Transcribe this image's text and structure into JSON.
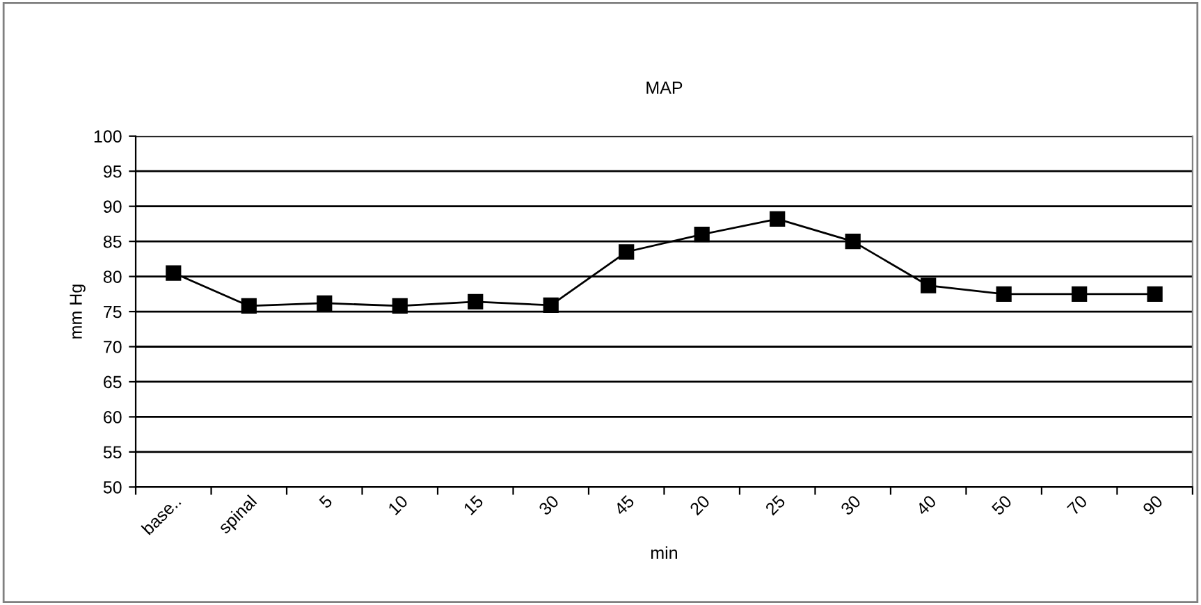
{
  "chart_data": {
    "type": "line",
    "title": "MAP",
    "xlabel": "min",
    "ylabel": "mm Hg",
    "categories": [
      "base..",
      "spinal",
      "5",
      "10",
      "15",
      "30",
      "45",
      "20",
      "25",
      "30",
      "40",
      "50",
      "70",
      "90"
    ],
    "series": [
      {
        "color": "#000000",
        "values": [
          80.5,
          75.8,
          76.2,
          75.8,
          76.4,
          75.9,
          83.5,
          86.0,
          88.2,
          85.0,
          78.7,
          77.5,
          77.5,
          77.5
        ]
      }
    ],
    "ylim": [
      50,
      100
    ],
    "yticks": [
      50,
      55,
      60,
      65,
      70,
      75,
      80,
      85,
      90,
      95,
      100
    ],
    "grid": "y",
    "marker": "square",
    "line_style": "solid",
    "legend": false
  }
}
